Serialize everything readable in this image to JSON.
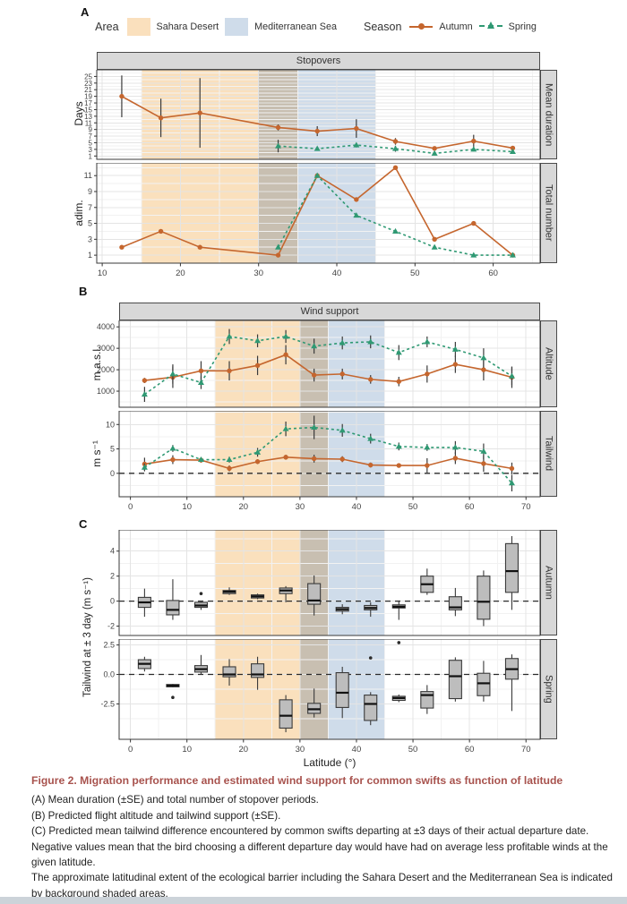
{
  "figure": {
    "panel_a": "A",
    "panel_b": "B",
    "panel_c": "C"
  },
  "legend": {
    "area_label": "Area",
    "sahara": "Sahara Desert",
    "mediterranean": "Mediterranean Sea",
    "season_label": "Season",
    "autumn": "Autumn",
    "spring": "Spring"
  },
  "colors": {
    "autumn": "#c5662e",
    "spring": "#2f9973",
    "sahara": "#fae0bd",
    "mediterranean": "#cfdcea",
    "overlap": "#c8bfb1",
    "box_fill": "#bdbdbd",
    "strip_bg": "#d8d8d8",
    "caption_title": "#a8534e"
  },
  "bands": [
    {
      "from": 15,
      "to": 30,
      "color": "sahara"
    },
    {
      "from": 30,
      "to": 35,
      "color": "overlap"
    },
    {
      "from": 35,
      "to": 45,
      "color": "mediterranean"
    }
  ],
  "c_ylabel": "Tailwind at ± 3 day (m s⁻¹)",
  "xlabel": "Latitude (°)",
  "chart_data": [
    {
      "id": "mean_duration",
      "type": "line",
      "strip_top": "Stopovers",
      "strip_right": "Mean duration",
      "ylabel": "Days",
      "xlim": [
        9.3,
        66
      ],
      "ylim": [
        0,
        27
      ],
      "yticks": [
        1,
        3,
        5,
        7,
        9,
        11,
        13,
        15,
        17,
        19,
        21,
        23,
        25
      ],
      "xticks": [
        10,
        20,
        30,
        40,
        50,
        60
      ],
      "show_x_axis": false,
      "zero_line": false,
      "series": [
        {
          "name": "Autumn",
          "color": "autumn",
          "marker": "circle",
          "dash": false,
          "x": [
            12.5,
            17.5,
            22.5,
            32.5,
            37.5,
            42.5,
            47.5,
            52.5,
            57.5,
            62.5
          ],
          "y": [
            19,
            12.5,
            14,
            9.6,
            8.5,
            9.3,
            5.4,
            3.3,
            5.5,
            3.4
          ],
          "se": [
            6.3,
            5.8,
            10.5,
            0.9,
            1.5,
            2.8,
            1.0,
            0.6,
            1.9,
            0.5
          ]
        },
        {
          "name": "Spring",
          "color": "spring",
          "marker": "triangle",
          "dash": true,
          "x": [
            32.5,
            37.5,
            42.5,
            47.5,
            52.5,
            57.5,
            62.5
          ],
          "y": [
            4.0,
            3.2,
            4.3,
            3.2,
            1.8,
            3.0,
            2.3
          ],
          "se": [
            1.9,
            0.6,
            0.7,
            0.9,
            0.4,
            0.6,
            0.5
          ]
        }
      ]
    },
    {
      "id": "total_number",
      "type": "line",
      "strip_right": "Total number",
      "ylabel": "adim.",
      "xlim": [
        9.3,
        66
      ],
      "ylim": [
        0,
        12.6
      ],
      "yticks": [
        1,
        3,
        5,
        7,
        9,
        11
      ],
      "xticks": [
        10,
        20,
        30,
        40,
        50,
        60
      ],
      "show_x_axis": true,
      "zero_line": false,
      "series": [
        {
          "name": "Autumn",
          "color": "autumn",
          "marker": "circle",
          "dash": false,
          "x": [
            12.5,
            17.5,
            22.5,
            32.5,
            37.5,
            42.5,
            47.5,
            52.5,
            57.5,
            62.5
          ],
          "y": [
            2,
            4,
            2,
            1,
            11,
            8,
            12,
            3,
            5,
            1
          ]
        },
        {
          "name": "Spring",
          "color": "spring",
          "marker": "triangle",
          "dash": true,
          "x": [
            32.5,
            37.5,
            42.5,
            47.5,
            52.5,
            57.5,
            62.5
          ],
          "y": [
            2,
            11,
            6,
            4,
            2,
            1,
            1
          ]
        }
      ]
    },
    {
      "id": "altitude",
      "type": "line",
      "strip_top": "Wind support",
      "strip_right": "Altitude",
      "ylabel": "m a.s.l.",
      "xlim": [
        -2,
        72.5
      ],
      "ylim": [
        250,
        4300
      ],
      "yticks": [
        1000,
        2000,
        3000,
        4000
      ],
      "xticks": [
        0,
        10,
        20,
        30,
        40,
        50,
        60,
        70
      ],
      "show_x_axis": false,
      "zero_line": false,
      "series": [
        {
          "name": "Autumn",
          "color": "autumn",
          "marker": "circle",
          "dash": false,
          "x": [
            2.5,
            7.5,
            12.5,
            17.5,
            22.5,
            27.5,
            32.5,
            37.5,
            42.5,
            47.5,
            52.5,
            57.5,
            62.5,
            67.5
          ],
          "y": [
            1500,
            1650,
            1950,
            1950,
            2200,
            2700,
            1750,
            1800,
            1550,
            1450,
            1800,
            2250,
            2000,
            1650
          ],
          "se": [
            120,
            500,
            450,
            450,
            450,
            450,
            300,
            250,
            200,
            220,
            400,
            400,
            500,
            500
          ]
        },
        {
          "name": "Spring",
          "color": "spring",
          "marker": "triangle",
          "dash": true,
          "x": [
            2.5,
            7.5,
            12.5,
            17.5,
            22.5,
            27.5,
            32.5,
            37.5,
            42.5,
            47.5,
            52.5,
            57.5,
            62.5,
            67.5
          ],
          "y": [
            850,
            1800,
            1400,
            3550,
            3350,
            3550,
            3100,
            3250,
            3300,
            2800,
            3300,
            2950,
            2550,
            1700
          ],
          "se": [
            350,
            450,
            300,
            350,
            300,
            300,
            350,
            300,
            300,
            350,
            250,
            350,
            450,
            420
          ]
        }
      ]
    },
    {
      "id": "tailwind",
      "type": "line",
      "strip_right": "Tailwind",
      "ylabel": "m s⁻¹",
      "xlim": [
        -2,
        72.5
      ],
      "ylim": [
        -4.8,
        12.8
      ],
      "yticks": [
        0,
        5,
        10
      ],
      "xticks": [
        0,
        10,
        20,
        30,
        40,
        50,
        60,
        70
      ],
      "show_x_axis": true,
      "zero_line": true,
      "series": [
        {
          "name": "Autumn",
          "color": "autumn",
          "marker": "circle",
          "dash": false,
          "x": [
            2.5,
            7.5,
            12.5,
            17.5,
            22.5,
            27.5,
            32.5,
            37.5,
            42.5,
            47.5,
            52.5,
            57.5,
            62.5,
            67.5
          ],
          "y": [
            1.9,
            2.8,
            2.7,
            1.0,
            2.4,
            3.3,
            3.0,
            2.9,
            1.7,
            1.6,
            1.6,
            3.1,
            2.0,
            1.0
          ],
          "se": [
            1.3,
            0.9,
            0.5,
            0.6,
            0.5,
            0.5,
            0.8,
            0.6,
            0.5,
            0.4,
            1.5,
            1.2,
            1.7,
            1.2
          ]
        },
        {
          "name": "Spring",
          "color": "spring",
          "marker": "triangle",
          "dash": true,
          "x": [
            2.5,
            7.5,
            12.5,
            17.5,
            22.5,
            27.5,
            32.5,
            37.5,
            42.5,
            47.5,
            52.5,
            57.5,
            62.5,
            67.5
          ],
          "y": [
            1.2,
            5.1,
            2.8,
            2.8,
            4.3,
            9.1,
            9.4,
            8.8,
            7.1,
            5.5,
            5.3,
            5.3,
            4.5,
            -2.0
          ],
          "se": [
            0.8,
            0.7,
            0.4,
            0.6,
            0.9,
            1.5,
            2.4,
            1.3,
            1.0,
            0.8,
            0.7,
            1.3,
            1.6,
            1.7
          ]
        }
      ]
    },
    {
      "id": "tailwind_diff_autumn",
      "type": "box",
      "strip_right": "Autumn",
      "xlim": [
        -2,
        72.5
      ],
      "ylim": [
        -2.75,
        5.7
      ],
      "yticks": [
        -2,
        0,
        2,
        4
      ],
      "xticks": [
        0,
        10,
        20,
        30,
        40,
        50,
        60,
        70
      ],
      "show_x_axis": false,
      "zero_line": true,
      "boxes": [
        {
          "x": 2.5,
          "lo": -1.25,
          "q1": -0.5,
          "med": -0.1,
          "q3": 0.3,
          "hi": 1.0,
          "out": []
        },
        {
          "x": 7.5,
          "lo": -1.5,
          "q1": -1.1,
          "med": -0.7,
          "q3": 0.05,
          "hi": 1.75,
          "out": []
        },
        {
          "x": 12.5,
          "lo": -0.7,
          "q1": -0.5,
          "med": -0.35,
          "q3": -0.1,
          "hi": 0.0,
          "out": [
            0.6
          ]
        },
        {
          "x": 17.5,
          "lo": 0.5,
          "q1": 0.6,
          "med": 0.75,
          "q3": 0.85,
          "hi": 1.1,
          "out": []
        },
        {
          "x": 22.5,
          "lo": 0.15,
          "q1": 0.25,
          "med": 0.38,
          "q3": 0.5,
          "hi": 0.6,
          "out": []
        },
        {
          "x": 27.5,
          "lo": -0.1,
          "q1": 0.6,
          "med": 0.85,
          "q3": 1.05,
          "hi": 1.2,
          "out": []
        },
        {
          "x": 32.5,
          "lo": -1.15,
          "q1": -0.25,
          "med": 0.05,
          "q3": 1.4,
          "hi": 2.05,
          "out": []
        },
        {
          "x": 37.5,
          "lo": -1.05,
          "q1": -0.8,
          "med": -0.65,
          "q3": -0.5,
          "hi": -0.25,
          "out": []
        },
        {
          "x": 42.5,
          "lo": -1.25,
          "q1": -0.7,
          "med": -0.55,
          "q3": -0.35,
          "hi": -0.1,
          "out": []
        },
        {
          "x": 47.5,
          "lo": -1.5,
          "q1": -0.55,
          "med": -0.45,
          "q3": -0.3,
          "hi": 0.05,
          "out": []
        },
        {
          "x": 52.5,
          "lo": 0.5,
          "q1": 0.7,
          "med": 1.35,
          "q3": 2.0,
          "hi": 2.6,
          "out": []
        },
        {
          "x": 57.5,
          "lo": -1.2,
          "q1": -0.7,
          "med": -0.5,
          "q3": 0.35,
          "hi": 1.05,
          "out": []
        },
        {
          "x": 62.5,
          "lo": -2.0,
          "q1": -1.45,
          "med": -0.05,
          "q3": 2.0,
          "hi": 2.45,
          "out": []
        },
        {
          "x": 67.5,
          "lo": -0.7,
          "q1": 0.7,
          "med": 2.4,
          "q3": 4.6,
          "hi": 5.2,
          "out": []
        }
      ]
    },
    {
      "id": "tailwind_diff_spring",
      "type": "box",
      "strip_right": "Spring",
      "xlim": [
        -2,
        72.5
      ],
      "ylim": [
        -5.5,
        3.0
      ],
      "yticks": [
        -2.5,
        0,
        2.5
      ],
      "ytick_labels": [
        "-2.5",
        "0.0",
        "2.5"
      ],
      "xticks": [
        0,
        10,
        20,
        30,
        40,
        50,
        60,
        70
      ],
      "show_x_axis": true,
      "zero_line": true,
      "boxes": [
        {
          "x": 2.5,
          "lo": 0.25,
          "q1": 0.5,
          "med": 0.9,
          "q3": 1.25,
          "hi": 1.5,
          "out": []
        },
        {
          "x": 7.5,
          "lo": -1.1,
          "q1": -1.05,
          "med": -0.95,
          "q3": -0.85,
          "hi": -0.8,
          "out": [
            -1.95
          ]
        },
        {
          "x": 12.5,
          "lo": 0.0,
          "q1": 0.2,
          "med": 0.45,
          "q3": 0.75,
          "hi": 1.65,
          "out": []
        },
        {
          "x": 17.5,
          "lo": -0.95,
          "q1": -0.2,
          "med": 0.0,
          "q3": 0.65,
          "hi": 1.3,
          "out": []
        },
        {
          "x": 22.5,
          "lo": -1.3,
          "q1": -0.25,
          "med": 0.0,
          "q3": 0.9,
          "hi": 1.5,
          "out": []
        },
        {
          "x": 27.5,
          "lo": -4.9,
          "q1": -4.55,
          "med": -3.5,
          "q3": -2.15,
          "hi": -1.75,
          "out": []
        },
        {
          "x": 32.5,
          "lo": -3.65,
          "q1": -3.3,
          "med": -2.95,
          "q3": -2.45,
          "hi": -1.2,
          "out": []
        },
        {
          "x": 37.5,
          "lo": -3.7,
          "q1": -2.8,
          "med": -1.55,
          "q3": 0.15,
          "hi": 0.65,
          "out": []
        },
        {
          "x": 42.5,
          "lo": -4.3,
          "q1": -3.9,
          "med": -2.5,
          "q3": -1.75,
          "hi": -1.5,
          "out": [
            1.4
          ]
        },
        {
          "x": 47.5,
          "lo": -2.35,
          "q1": -2.2,
          "med": -2.0,
          "q3": -1.85,
          "hi": -1.7,
          "out": [
            2.7
          ]
        },
        {
          "x": 52.5,
          "lo": -3.35,
          "q1": -2.85,
          "med": -1.75,
          "q3": -1.45,
          "hi": -0.9,
          "out": []
        },
        {
          "x": 57.5,
          "lo": -2.3,
          "q1": -2.05,
          "med": -0.15,
          "q3": 1.2,
          "hi": 1.45,
          "out": []
        },
        {
          "x": 62.5,
          "lo": -2.3,
          "q1": -1.8,
          "med": -0.75,
          "q3": 0.1,
          "hi": 1.15,
          "out": []
        },
        {
          "x": 67.5,
          "lo": -3.1,
          "q1": -0.4,
          "med": 0.45,
          "q3": 1.35,
          "hi": 1.7,
          "out": []
        }
      ]
    }
  ],
  "caption": {
    "title": "Figure 2. Migration performance and estimated wind support for common swifts as function of latitude",
    "a": "(A) Mean duration (±SE) and total number of stopover periods.",
    "b": "(B) Predicted flight altitude and tailwind support (±SE).",
    "c": "(C) Predicted mean tailwind difference encountered by common swifts departing at ±3 days of their actual departure date. Negative values mean that the bird choosing a different departure day would have had on average less profitable winds at the given latitude.",
    "note": "The approximate latitudinal extent of the ecological barrier including the Sahara Desert and the Mediterranean Sea is indicated by background shaded areas."
  }
}
